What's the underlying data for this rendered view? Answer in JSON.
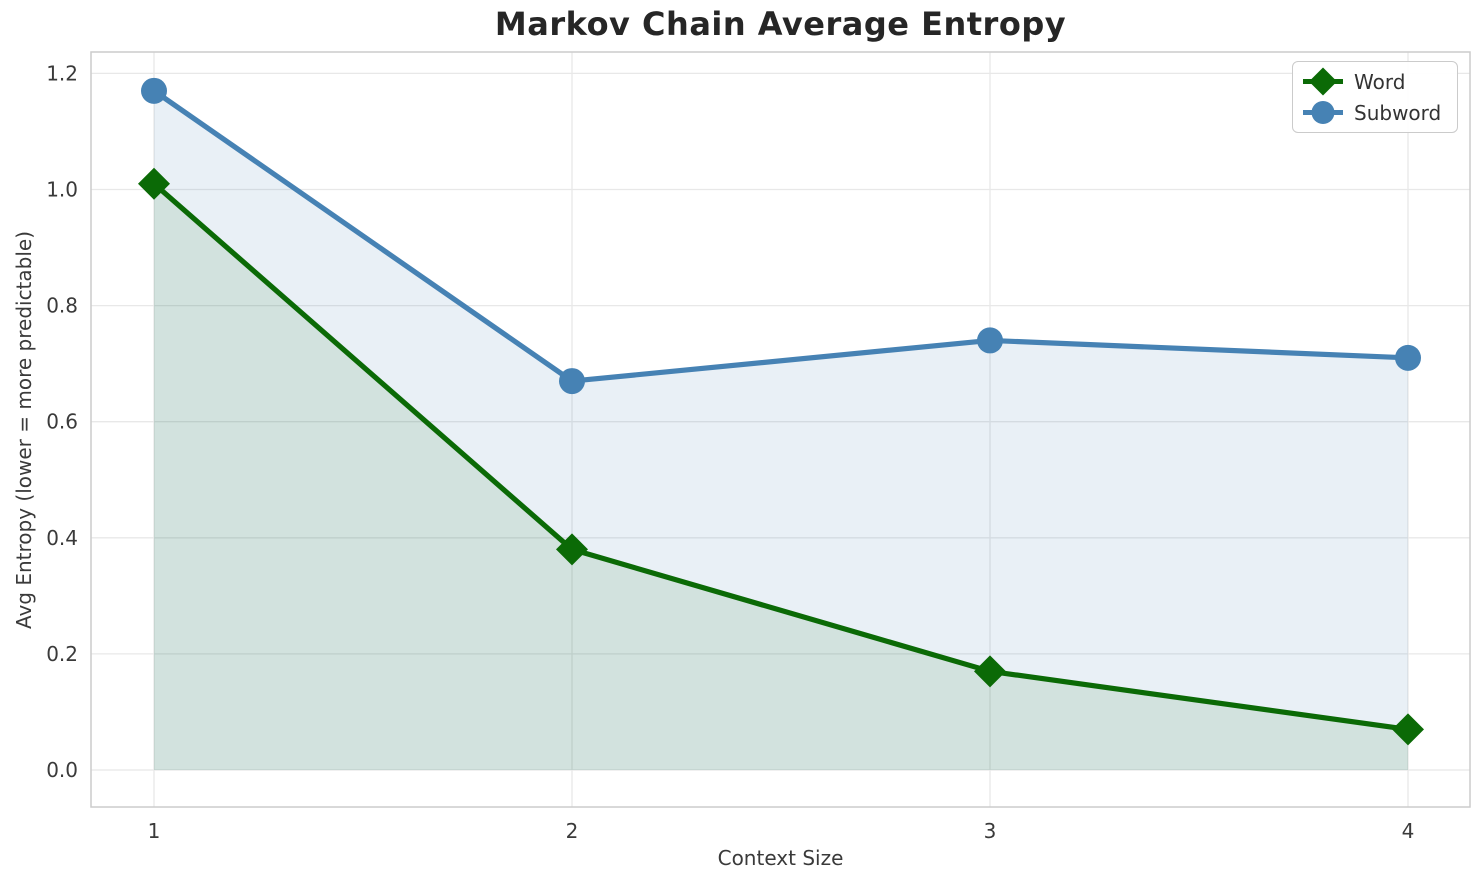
{
  "chart_data": {
    "type": "line",
    "title": "Markov Chain Average Entropy",
    "xlabel": "Context Size",
    "ylabel": "Avg Entropy (lower = more predictable)",
    "x": [
      1,
      2,
      3,
      4
    ],
    "xtick_labels": [
      "1",
      "2",
      "3",
      "4"
    ],
    "ytick_values": [
      0.0,
      0.2,
      0.4,
      0.6,
      0.8,
      1.0,
      1.2
    ],
    "ytick_labels": [
      "0.0",
      "0.2",
      "0.4",
      "0.6",
      "0.8",
      "1.0",
      "1.2"
    ],
    "xlim": [
      0.85,
      4.15
    ],
    "ylim": [
      -0.064,
      1.237
    ],
    "grid": true,
    "legend_position": "upper right",
    "series": [
      {
        "name": "Word",
        "marker": "diamond",
        "color": "#0B6A06",
        "fill_opacity": 0.1,
        "values": [
          1.01,
          0.38,
          0.17,
          0.07
        ]
      },
      {
        "name": "Subword",
        "marker": "circle",
        "color": "#4682B4",
        "fill_opacity": 0.12,
        "values": [
          1.17,
          0.67,
          0.74,
          0.71
        ]
      }
    ],
    "colors": {
      "grid": "#e8e8e8",
      "spine": "#cccccc",
      "tick_label": "#3a3a3a",
      "title": "#262626",
      "background": "#ffffff"
    }
  }
}
